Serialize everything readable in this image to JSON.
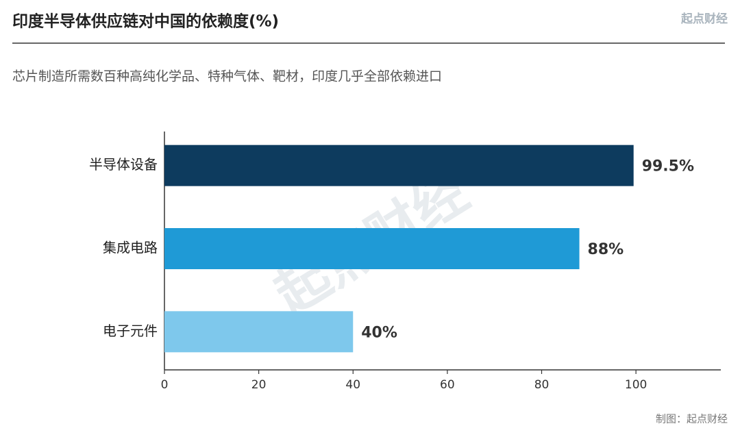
{
  "chart_data": {
    "type": "bar",
    "orientation": "horizontal",
    "title": "印度半导体供应链对中国的依赖度(%)",
    "brand": "起点财经",
    "subtitle": "芯片制造所需数百种高纯化学品、特种气体、靶材，印度几乎全部依赖进口",
    "watermark": "起点财经",
    "source": "制图：起点财经",
    "categories": [
      "半导体设备",
      "集成电路",
      "电子元件"
    ],
    "values": [
      99.5,
      88,
      40
    ],
    "value_labels": [
      "99.5%",
      "88%",
      "40%"
    ],
    "colors": [
      "#0d3b5e",
      "#1f9ad6",
      "#7ec8ec"
    ],
    "xlim": [
      0,
      118
    ],
    "xticks": [
      0,
      20,
      40,
      60,
      80,
      100
    ]
  }
}
